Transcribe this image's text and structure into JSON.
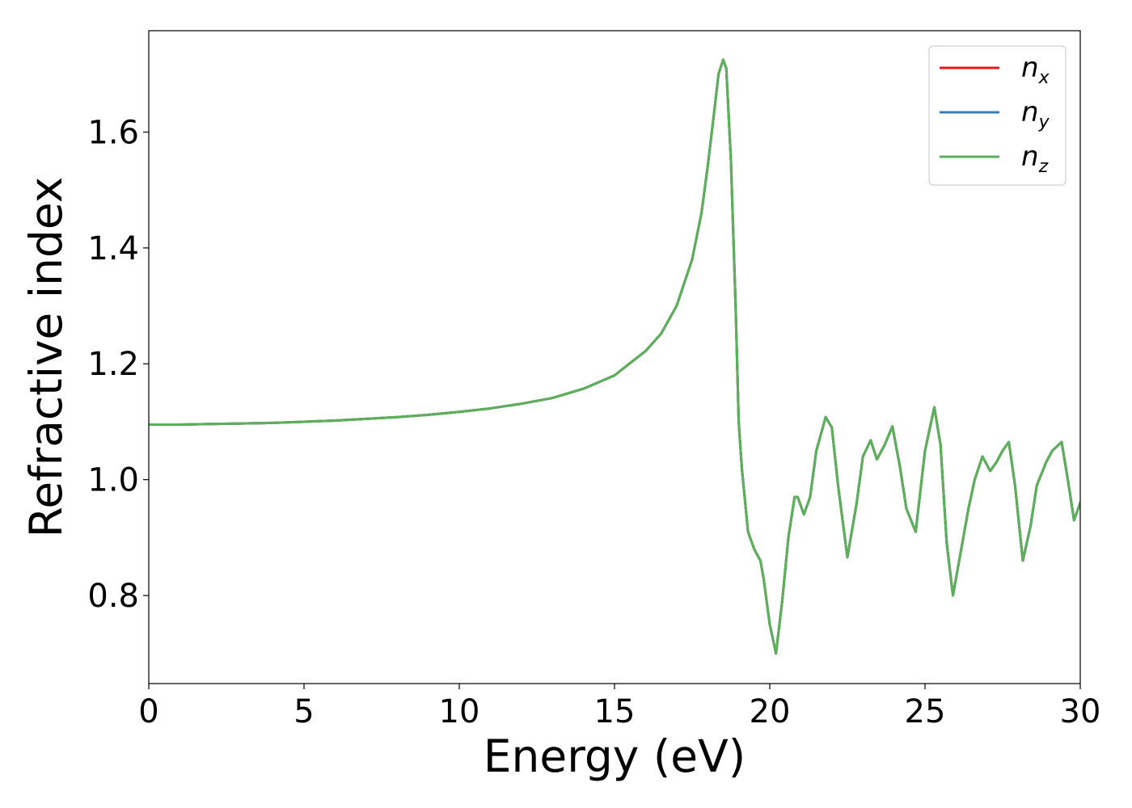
{
  "chart_data": {
    "type": "line",
    "xlabel": "Energy (eV)",
    "ylabel": "Refractive index",
    "xlim": [
      0,
      30
    ],
    "ylim": [
      0.648,
      1.775
    ],
    "xticks": [
      0,
      5,
      10,
      15,
      20,
      25,
      30
    ],
    "xtick_labels": [
      "0",
      "5",
      "10",
      "15",
      "20",
      "25",
      "30"
    ],
    "yticks": [
      0.8,
      1.0,
      1.2,
      1.4,
      1.6
    ],
    "ytick_labels": [
      "0.8",
      "1.0",
      "1.2",
      "1.4",
      "1.6"
    ],
    "grid": false,
    "legend_position": "top-right",
    "series": [
      {
        "name": "n",
        "sub": "x",
        "color": "#e41a1c"
      },
      {
        "name": "n",
        "sub": "y",
        "color": "#377eb8"
      },
      {
        "name": "n",
        "sub": "z",
        "color": "#5cb05a"
      }
    ],
    "x": [
      0,
      1,
      2,
      3,
      4,
      5,
      6,
      7,
      8,
      9,
      10,
      11,
      12,
      13,
      14,
      15,
      16,
      16.5,
      17,
      17.5,
      17.8,
      18,
      18.2,
      18.35,
      18.5,
      18.6,
      18.75,
      18.9,
      19.0,
      19.1,
      19.3,
      19.5,
      19.7,
      19.8,
      20.0,
      20.2,
      20.4,
      20.6,
      20.8,
      20.9,
      21.1,
      21.3,
      21.5,
      21.8,
      22.0,
      22.2,
      22.5,
      22.8,
      23.0,
      23.25,
      23.45,
      23.7,
      23.95,
      24.2,
      24.4,
      24.7,
      25.0,
      25.3,
      25.5,
      25.7,
      25.9,
      26.1,
      26.4,
      26.6,
      26.85,
      27.1,
      27.3,
      27.5,
      27.7,
      27.9,
      28.15,
      28.4,
      28.6,
      28.9,
      29.1,
      29.4,
      29.6,
      29.8,
      30.0
    ],
    "y": [
      1.095,
      1.095,
      1.096,
      1.097,
      1.098,
      1.1,
      1.102,
      1.105,
      1.108,
      1.112,
      1.117,
      1.123,
      1.131,
      1.141,
      1.157,
      1.18,
      1.222,
      1.252,
      1.3,
      1.38,
      1.46,
      1.54,
      1.63,
      1.7,
      1.725,
      1.71,
      1.55,
      1.3,
      1.1,
      1.02,
      0.91,
      0.88,
      0.86,
      0.83,
      0.75,
      0.7,
      0.79,
      0.9,
      0.97,
      0.97,
      0.94,
      0.97,
      1.05,
      1.108,
      1.09,
      0.99,
      0.866,
      0.96,
      1.04,
      1.068,
      1.035,
      1.06,
      1.092,
      1.02,
      0.95,
      0.91,
      1.05,
      1.125,
      1.06,
      0.89,
      0.8,
      0.86,
      0.95,
      1.0,
      1.04,
      1.015,
      1.03,
      1.05,
      1.065,
      0.99,
      0.86,
      0.92,
      0.99,
      1.03,
      1.05,
      1.065,
      1.0,
      0.93,
      0.96
    ]
  }
}
